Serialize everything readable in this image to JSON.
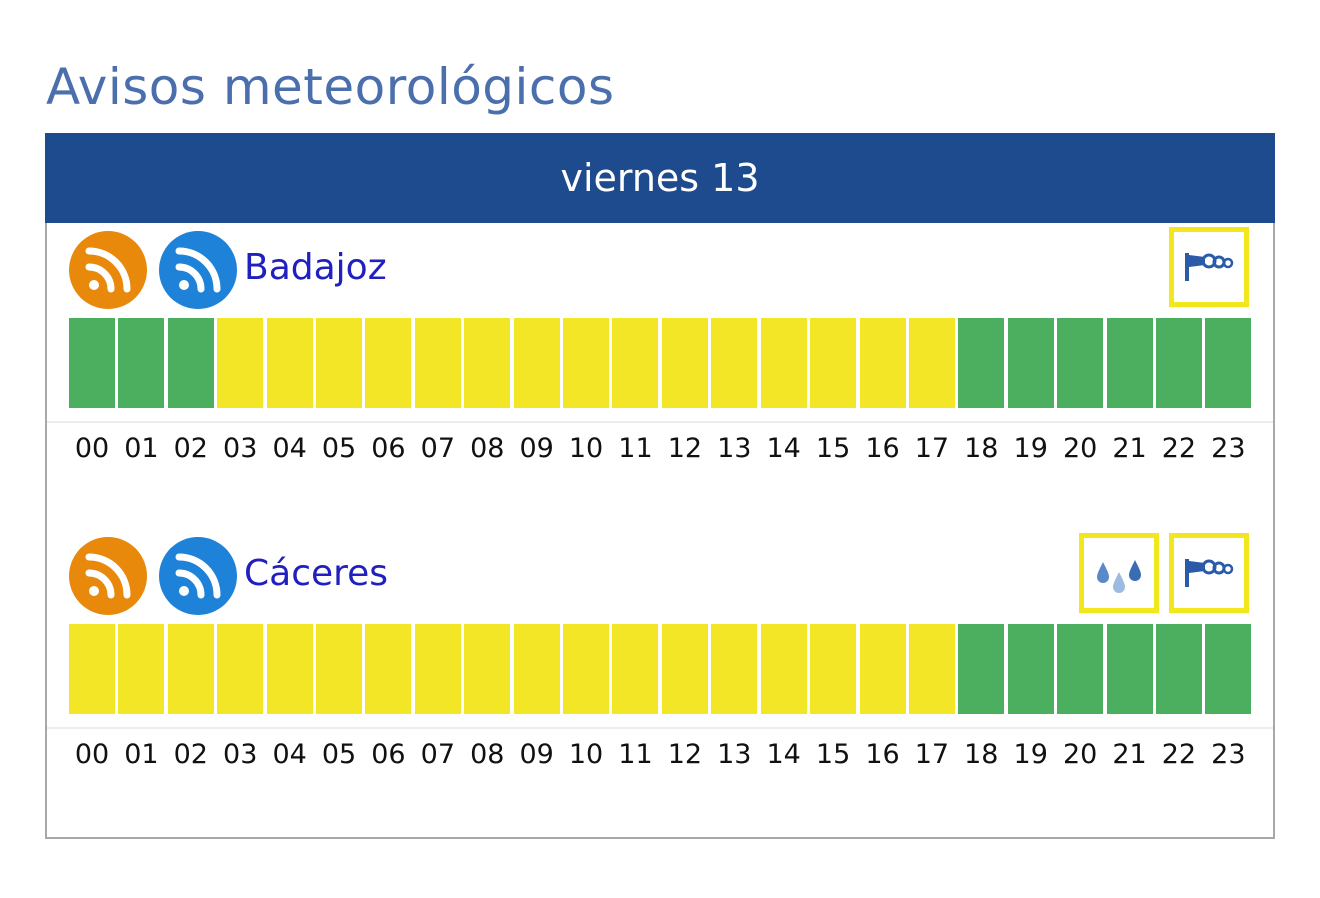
{
  "title": "Avisos meteorológicos",
  "day": "viernes 13",
  "colors": {
    "header": "#1e4a8e",
    "level_green": "#4caf5f",
    "level_yellow": "#f2e626",
    "rss_orange": "#e8890c",
    "rss_blue": "#1e82d8",
    "region_link": "#2020c0"
  },
  "hours": [
    "00",
    "01",
    "02",
    "03",
    "04",
    "05",
    "06",
    "07",
    "08",
    "09",
    "10",
    "11",
    "12",
    "13",
    "14",
    "15",
    "16",
    "17",
    "18",
    "19",
    "20",
    "21",
    "22",
    "23"
  ],
  "regions": [
    {
      "name": "Badajoz",
      "icons": [
        "rss-orange-icon",
        "rss-blue-icon"
      ],
      "warnings": [
        "wind-warning-icon"
      ],
      "levels": [
        "green",
        "green",
        "green",
        "yellow",
        "yellow",
        "yellow",
        "yellow",
        "yellow",
        "yellow",
        "yellow",
        "yellow",
        "yellow",
        "yellow",
        "yellow",
        "yellow",
        "yellow",
        "yellow",
        "yellow",
        "green",
        "green",
        "green",
        "green",
        "green",
        "green"
      ]
    },
    {
      "name": "Cáceres",
      "icons": [
        "rss-orange-icon",
        "rss-blue-icon"
      ],
      "warnings": [
        "rain-warning-icon",
        "wind-warning-icon"
      ],
      "levels": [
        "yellow",
        "yellow",
        "yellow",
        "yellow",
        "yellow",
        "yellow",
        "yellow",
        "yellow",
        "yellow",
        "yellow",
        "yellow",
        "yellow",
        "yellow",
        "yellow",
        "yellow",
        "yellow",
        "yellow",
        "yellow",
        "green",
        "green",
        "green",
        "green",
        "green",
        "green"
      ]
    }
  ]
}
